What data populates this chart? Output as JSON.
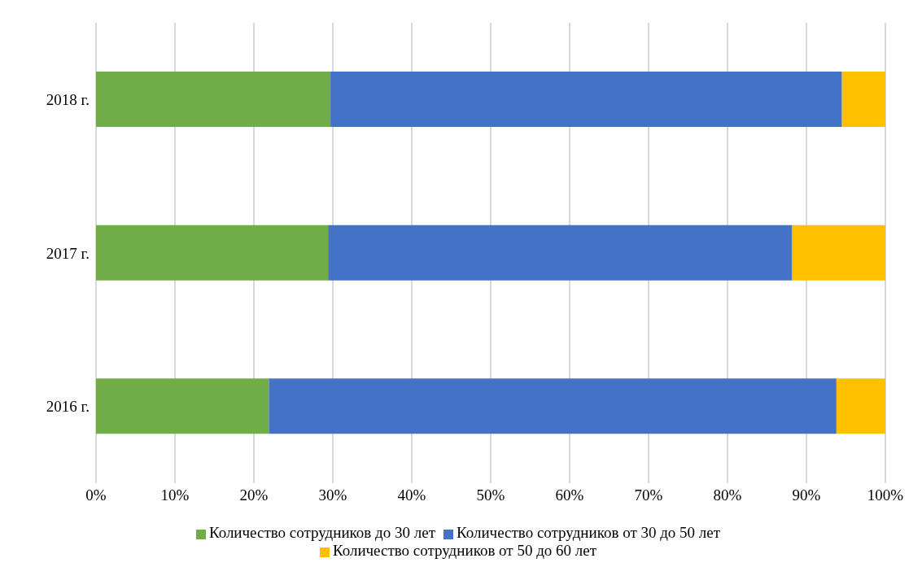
{
  "chart_data": {
    "type": "bar",
    "orientation": "horizontal",
    "stacked": true,
    "categories": [
      "2018 г.",
      "2017 г.",
      "2016 г."
    ],
    "series": [
      {
        "name": "Количество сотрудников до 30 лет",
        "color": "#70ad47",
        "values": [
          29.7,
          29.4,
          21.9
        ]
      },
      {
        "name": "Количество сотрудников от 30 до 50 лет",
        "color": "#4472c4",
        "values": [
          64.8,
          58.8,
          71.9
        ]
      },
      {
        "name": "Количество сотрудников от 50 до 60 лет",
        "color": "#ffc000",
        "values": [
          5.5,
          11.8,
          6.2
        ]
      }
    ],
    "xlim": [
      0,
      100
    ],
    "xticks": [
      {
        "value": 0,
        "label": "0%"
      },
      {
        "value": 10,
        "label": "10%"
      },
      {
        "value": 20,
        "label": "20%"
      },
      {
        "value": 30,
        "label": "30%"
      },
      {
        "value": 40,
        "label": "40%"
      },
      {
        "value": 50,
        "label": "50%"
      },
      {
        "value": 60,
        "label": "60%"
      },
      {
        "value": 70,
        "label": "70%"
      },
      {
        "value": 80,
        "label": "80%"
      },
      {
        "value": 90,
        "label": "90%"
      },
      {
        "value": 100,
        "label": "100%"
      }
    ],
    "grid": "x",
    "legend": "bottom"
  }
}
